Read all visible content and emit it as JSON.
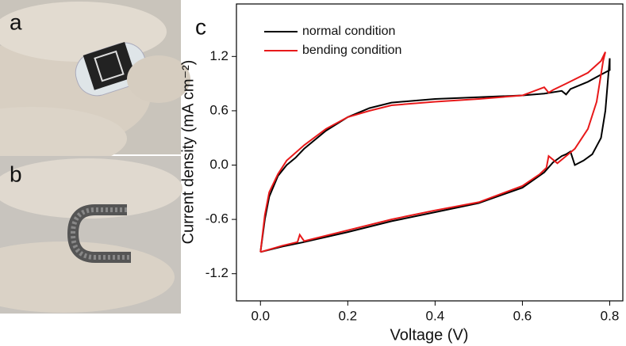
{
  "panel_labels": [
    "a",
    "b",
    "c"
  ],
  "chart_data": {
    "type": "line",
    "x_label": "Voltage (V)",
    "y_label": "Current density (mA cm⁻²)",
    "xlim": [
      -0.055,
      0.83
    ],
    "ylim": [
      -1.5,
      1.78
    ],
    "xticks": [
      {
        "value": 0,
        "label": "0.0"
      },
      0.2,
      0.4,
      0.6,
      0.8
    ],
    "yticks": [
      -1.2,
      -0.6,
      {
        "value": 0,
        "label": "0.0"
      },
      0.6,
      1.2
    ],
    "grid": false,
    "legend": "upper left",
    "series": [
      {
        "name": "normal condition",
        "color": "#000000",
        "x": [
          0,
          0.01,
          0.02,
          0.04,
          0.06,
          0.08,
          0.1,
          0.15,
          0.2,
          0.25,
          0.3,
          0.4,
          0.5,
          0.6,
          0.65,
          0.69,
          0.7,
          0.71,
          0.75,
          0.78,
          0.8,
          0.8,
          0.79,
          0.78,
          0.76,
          0.74,
          0.72,
          0.71,
          0.7,
          0.69,
          0.67,
          0.65,
          0.6,
          0.5,
          0.4,
          0.3,
          0.2,
          0.1,
          0.05,
          0
        ],
        "values": [
          -0.96,
          -0.6,
          -0.35,
          -0.12,
          0.0,
          0.08,
          0.18,
          0.38,
          0.53,
          0.63,
          0.69,
          0.73,
          0.75,
          0.77,
          0.79,
          0.82,
          0.78,
          0.84,
          0.92,
          1.0,
          1.05,
          1.18,
          0.6,
          0.3,
          0.12,
          0.05,
          0.0,
          0.15,
          0.12,
          0.1,
          0.03,
          -0.08,
          -0.25,
          -0.42,
          -0.52,
          -0.62,
          -0.74,
          -0.85,
          -0.9,
          -0.96
        ]
      },
      {
        "name": "bending condition",
        "color": "#e8191a",
        "x": [
          0,
          0.01,
          0.02,
          0.04,
          0.06,
          0.1,
          0.15,
          0.2,
          0.25,
          0.3,
          0.4,
          0.5,
          0.6,
          0.65,
          0.66,
          0.67,
          0.7,
          0.75,
          0.78,
          0.79,
          0.785,
          0.77,
          0.75,
          0.72,
          0.7,
          0.68,
          0.66,
          0.655,
          0.64,
          0.6,
          0.5,
          0.4,
          0.3,
          0.2,
          0.1,
          0.09,
          0.085,
          0.05,
          0
        ],
        "values": [
          -0.96,
          -0.55,
          -0.3,
          -0.1,
          0.05,
          0.22,
          0.4,
          0.53,
          0.6,
          0.66,
          0.7,
          0.73,
          0.77,
          0.86,
          0.8,
          0.83,
          0.9,
          1.02,
          1.15,
          1.25,
          1.15,
          0.7,
          0.4,
          0.18,
          0.1,
          0.02,
          0.1,
          -0.03,
          -0.1,
          -0.23,
          -0.41,
          -0.5,
          -0.6,
          -0.72,
          -0.84,
          -0.77,
          -0.85,
          -0.89,
          -0.96
        ]
      }
    ]
  }
}
